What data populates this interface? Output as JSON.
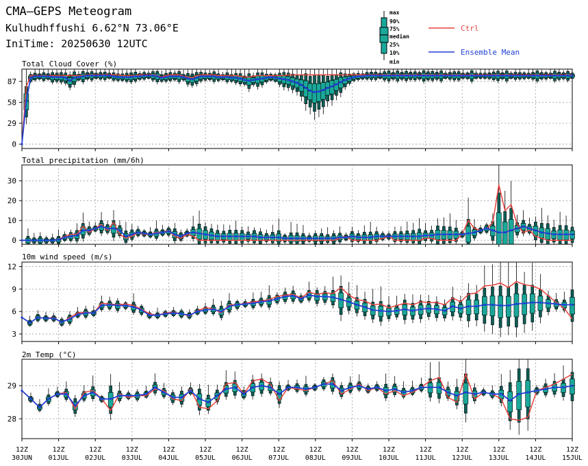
{
  "header": {
    "title": "CMA—GEPS Meteogram",
    "location": "Kulhudhffushi 6.62°N 73.06°E",
    "init_time": "IniTime: 20250630 12UTC"
  },
  "legend": {
    "box_labels": [
      "max",
      "90%",
      "75%",
      "median",
      "25%",
      "10%",
      "min"
    ],
    "ctrl_label": "Ctrl",
    "mean_label": "Ensemble Mean",
    "colors": {
      "ctrl": "#e8403c",
      "mean": "#1f3fd6",
      "box_fill": "#1aa89a",
      "box_dark": "#0b5f57"
    }
  },
  "x_axis": {
    "ticks": [
      {
        "top": "12Z",
        "bottom": "30JUN"
      },
      {
        "top": "12Z",
        "bottom": "01JUL"
      },
      {
        "top": "12Z",
        "bottom": "02JUL"
      },
      {
        "top": "12Z",
        "bottom": "03JUL"
      },
      {
        "top": "12Z",
        "bottom": "04JUL"
      },
      {
        "top": "12Z",
        "bottom": "05JUL"
      },
      {
        "top": "12Z",
        "bottom": "06JUL"
      },
      {
        "top": "12Z",
        "bottom": "07JUL"
      },
      {
        "top": "12Z",
        "bottom": "08JUL"
      },
      {
        "top": "12Z",
        "bottom": "09JUL"
      },
      {
        "top": "12Z",
        "bottom": "10JUL"
      },
      {
        "top": "12Z",
        "bottom": "11JUL"
      },
      {
        "top": "12Z",
        "bottom": "12JUL"
      },
      {
        "top": "12Z",
        "bottom": "13JUL"
      },
      {
        "top": "12Z",
        "bottom": "14JUL"
      },
      {
        "top": "12Z",
        "bottom": "15JUL"
      }
    ]
  },
  "chart_data": [
    {
      "type": "box",
      "title": "Total Cloud Cover (%)",
      "yticks": [
        0,
        29,
        58,
        87
      ],
      "ylim": [
        -6,
        104
      ],
      "ctrl": [
        0,
        80,
        95,
        95,
        95,
        95,
        95,
        95,
        95,
        95,
        95,
        95,
        95,
        95,
        95,
        96,
        96,
        96,
        96,
        96,
        96,
        96,
        96,
        95,
        95,
        95,
        95,
        96,
        96,
        96,
        96,
        95,
        93,
        95,
        96,
        96,
        96,
        94,
        93,
        92,
        95,
        96,
        96,
        96,
        96,
        95,
        95,
        95,
        95,
        95,
        94,
        93,
        93,
        94,
        95,
        95,
        95,
        95,
        95,
        95,
        95,
        96,
        96,
        96,
        96,
        96,
        96,
        96,
        96,
        96,
        96,
        96,
        96,
        96,
        96,
        96,
        96,
        96,
        96,
        96,
        96,
        96,
        96,
        96,
        96,
        96,
        96,
        96,
        96,
        96,
        96,
        96,
        96,
        96,
        96,
        96,
        96,
        96,
        96,
        96,
        96,
        96,
        96,
        96,
        96,
        96,
        96,
        96,
        96,
        96,
        96,
        96,
        96,
        96,
        96,
        96,
        96,
        96,
        96,
        96,
        96,
        96,
        96,
        96,
        96,
        96,
        96
      ],
      "mean": [
        0,
        60,
        92,
        94,
        94,
        94,
        94,
        93,
        93,
        93,
        92,
        88,
        92,
        93,
        94,
        95,
        95,
        95,
        95,
        95,
        95,
        94,
        93,
        93,
        93,
        93,
        94,
        94,
        95,
        95,
        95,
        94,
        92,
        93,
        94,
        94,
        94,
        93,
        91,
        90,
        92,
        94,
        94,
        94,
        94,
        93,
        93,
        93,
        92,
        92,
        91,
        89,
        88,
        89,
        90,
        91,
        92,
        93,
        92,
        91,
        90,
        89,
        87,
        85,
        82,
        78,
        74,
        72,
        73,
        75,
        78,
        80,
        83,
        86,
        89,
        91,
        93,
        94,
        94,
        95,
        95,
        95,
        95,
        95,
        95,
        95,
        95,
        95,
        95,
        95,
        95,
        95,
        95,
        95,
        95,
        95,
        95,
        95,
        95,
        95,
        95,
        95,
        95,
        95,
        95,
        95,
        95,
        95,
        95,
        95,
        95,
        95,
        95,
        95,
        95,
        95,
        95,
        95,
        95,
        95,
        95,
        95,
        95,
        95,
        95,
        95,
        95
      ]
    },
    {
      "type": "box",
      "title": "Total precipitation (mm/6h)",
      "yticks": [
        0,
        10,
        20,
        30
      ],
      "ylim": [
        -2,
        38
      ],
      "ctrl": [
        0,
        0,
        0,
        0,
        0,
        0,
        0.5,
        2,
        3,
        3,
        7,
        4,
        6,
        8,
        5,
        9,
        3,
        1,
        2,
        4,
        3,
        3,
        4,
        4,
        5,
        2,
        1,
        3,
        2,
        0,
        0,
        0,
        0,
        0,
        0,
        0,
        0,
        0,
        0,
        0,
        0,
        0,
        0,
        0,
        0,
        0,
        0,
        0,
        0,
        0,
        0,
        0,
        1,
        2,
        0,
        0,
        0,
        0,
        0,
        1,
        2,
        0,
        0,
        0,
        0,
        0,
        1,
        1,
        0,
        0,
        0,
        0,
        3,
        10,
        6,
        5,
        6,
        9,
        28,
        15,
        18,
        8,
        4,
        5,
        2,
        1,
        0,
        0,
        0,
        0,
        0
      ],
      "mean": [
        0,
        0,
        0,
        0,
        0,
        0,
        0.3,
        1.5,
        2,
        2.5,
        5,
        5,
        6,
        7,
        6,
        6,
        5,
        2,
        3,
        4,
        3.5,
        3,
        3.5,
        4,
        4.5,
        3,
        2,
        3.5,
        4,
        3.5,
        3,
        2.5,
        2,
        2,
        2,
        2,
        2,
        2,
        2,
        1.5,
        1.5,
        1.5,
        1.5,
        1,
        1,
        1,
        1,
        1,
        1,
        1,
        1,
        1,
        1.5,
        1.5,
        2,
        1.5,
        1.5,
        1.5,
        2,
        2,
        2,
        2,
        2,
        2,
        2,
        2,
        2.5,
        2.5,
        3,
        3,
        3,
        3,
        3,
        3.5,
        4,
        5,
        6,
        5,
        4,
        4,
        5,
        6,
        7,
        6,
        5,
        4,
        3.5,
        3,
        3,
        3,
        3
      ]
    },
    {
      "type": "box",
      "title": "10m wind speed (m/s)",
      "yticks": [
        3,
        6,
        9,
        12
      ],
      "ylim": [
        2,
        12.6
      ],
      "ctrl": [
        5.2,
        4.5,
        5.2,
        5.1,
        5.2,
        4.5,
        5.2,
        5.8,
        5.9,
        5.8,
        7.1,
        7.0,
        6.9,
        7.0,
        6.8,
        6.3,
        5.7,
        5.5,
        5.8,
        5.9,
        5.7,
        5.4,
        6.1,
        6.5,
        6.4,
        5.8,
        6.9,
        6.9,
        7.1,
        7.3,
        7.4,
        7.6,
        8.0,
        8.2,
        8.3,
        7.8,
        8.6,
        8.3,
        8.5,
        8.4,
        9.2,
        8.2,
        7.6,
        7.4,
        6.9,
        7.0,
        6.5,
        6.8,
        7.1,
        6.9,
        7.3,
        7.2,
        7.2,
        6.9,
        7.8,
        7.3,
        8.3,
        8.5,
        9.4,
        9.5,
        9.8,
        9.2,
        10.0,
        9.6,
        9.4,
        9.0,
        8.1,
        7.2,
        6.4,
        5.0
      ],
      "mean": [
        5.2,
        4.5,
        5.2,
        5.1,
        5.1,
        4.6,
        5.0,
        5.6,
        5.8,
        5.8,
        6.8,
        6.9,
        6.8,
        6.8,
        6.6,
        6.2,
        5.5,
        5.5,
        5.7,
        5.8,
        5.7,
        5.5,
        6.0,
        6.2,
        6.3,
        6.0,
        6.7,
        6.9,
        7.0,
        7.1,
        7.3,
        7.4,
        7.7,
        8.0,
        8.1,
        7.7,
        8.2,
        8.0,
        8.0,
        7.9,
        7.6,
        7.3,
        6.9,
        6.6,
        6.2,
        6.1,
        6.0,
        6.1,
        6.3,
        6.1,
        6.3,
        6.4,
        6.3,
        6.1,
        6.7,
        6.4,
        6.7,
        6.7,
        6.9,
        6.9,
        6.8,
        6.8,
        7.0,
        7.1,
        7.2,
        7.2,
        7.1,
        7.0,
        6.9,
        6.9
      ]
    },
    {
      "type": "box",
      "title": "2m Temp (°C)",
      "yticks": [
        28,
        29
      ],
      "ylim": [
        27.4,
        29.8
      ],
      "ctrl": [
        28.85,
        28.6,
        28.35,
        28.6,
        28.75,
        28.8,
        28.3,
        28.8,
        28.85,
        28.6,
        28.25,
        28.75,
        28.65,
        28.7,
        28.7,
        28.9,
        28.85,
        28.6,
        28.55,
        28.9,
        28.35,
        28.3,
        28.55,
        29.05,
        29.1,
        28.75,
        29.15,
        29.2,
        29.05,
        28.55,
        28.95,
        28.9,
        28.85,
        28.95,
        29.05,
        29.15,
        28.75,
        28.9,
        29.05,
        28.85,
        28.95,
        28.75,
        28.85,
        28.7,
        28.8,
        28.95,
        29.15,
        29.25,
        28.65,
        28.5,
        29.35,
        28.6,
        28.8,
        28.75,
        28.6,
        28.0,
        27.95,
        28.05,
        28.85,
        28.95,
        29.05,
        29.2,
        29.35
      ],
      "mean": [
        28.85,
        28.6,
        28.35,
        28.6,
        28.75,
        28.75,
        28.4,
        28.7,
        28.8,
        28.6,
        28.6,
        28.7,
        28.7,
        28.7,
        28.75,
        28.95,
        28.8,
        28.65,
        28.65,
        28.85,
        28.6,
        28.5,
        28.7,
        28.9,
        28.95,
        28.75,
        28.95,
        29.0,
        28.95,
        28.75,
        28.95,
        28.95,
        28.9,
        28.95,
        29.05,
        29.05,
        28.85,
        28.95,
        29.0,
        28.9,
        28.95,
        28.85,
        28.9,
        28.8,
        28.85,
        28.95,
        28.95,
        28.95,
        28.8,
        28.7,
        28.8,
        28.75,
        28.8,
        28.75,
        28.75,
        28.55,
        28.75,
        28.8,
        28.85,
        28.9,
        28.95,
        28.95,
        29.0
      ]
    }
  ]
}
